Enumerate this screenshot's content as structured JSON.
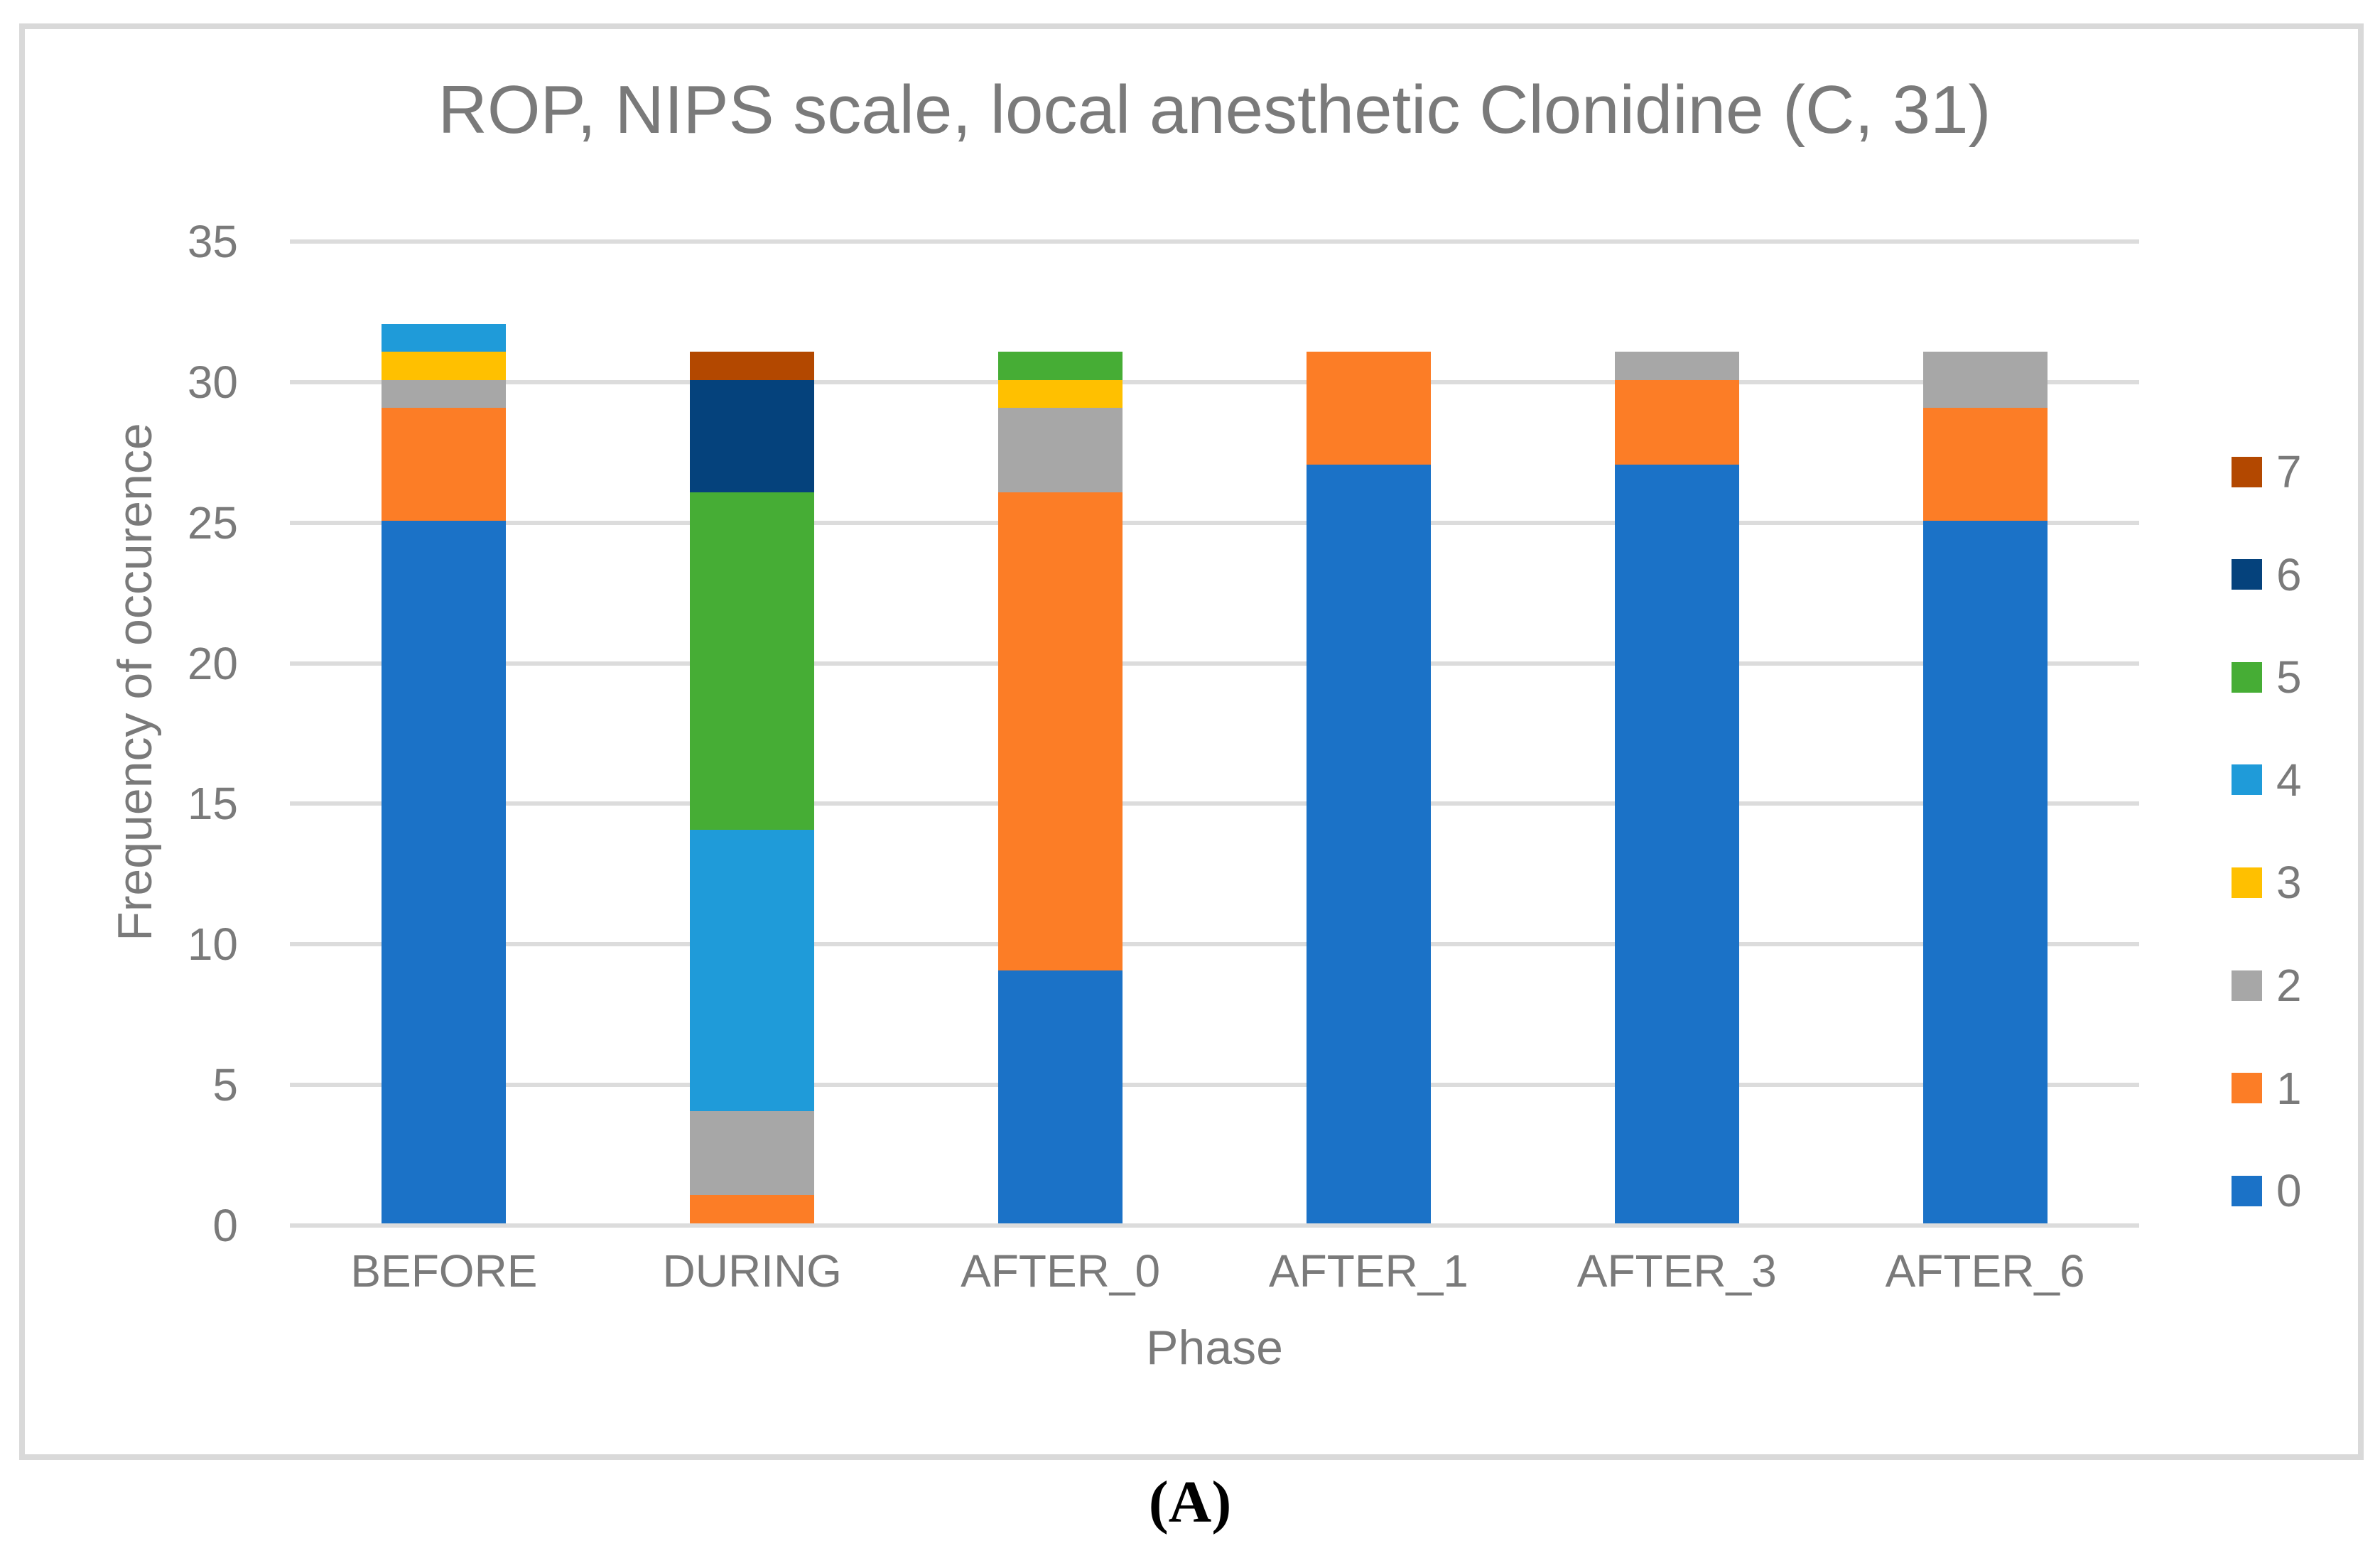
{
  "figure": {
    "caption": "(A)"
  },
  "theme": {
    "text_color": "#7A7A7A",
    "gridline_color": "#DCDCDC",
    "frame_border_color": "#D9D9D9",
    "background": "#FFFFFF"
  },
  "chart_data": {
    "type": "bar",
    "stacked": true,
    "title": "ROP, NIPS scale, local anesthetic Clonidine (C, 31)",
    "xlabel": "Phase",
    "ylabel": "Frequency of occurence",
    "categories": [
      "BEFORE",
      "DURING",
      "AFTER_0",
      "AFTER_1",
      "AFTER_3",
      "AFTER_6"
    ],
    "series": [
      {
        "name": "0",
        "color": "#1B72C7",
        "values": [
          25,
          0,
          9,
          27,
          27,
          25
        ]
      },
      {
        "name": "1",
        "color": "#FC7D26",
        "values": [
          4,
          1,
          17,
          4,
          3,
          4
        ]
      },
      {
        "name": "2",
        "color": "#A7A7A7",
        "values": [
          1,
          3,
          3,
          0,
          1,
          2
        ]
      },
      {
        "name": "3",
        "color": "#FFC000",
        "values": [
          1,
          0,
          1,
          0,
          0,
          0
        ]
      },
      {
        "name": "4",
        "color": "#1F9BD9",
        "values": [
          1,
          10,
          0,
          0,
          0,
          0
        ]
      },
      {
        "name": "5",
        "color": "#46AD35",
        "values": [
          0,
          12,
          1,
          0,
          0,
          0
        ]
      },
      {
        "name": "6",
        "color": "#05427C",
        "values": [
          0,
          4,
          0,
          0,
          0,
          0
        ]
      },
      {
        "name": "7",
        "color": "#B34800",
        "values": [
          0,
          1,
          0,
          0,
          0,
          0
        ]
      }
    ],
    "totals_per_category": [
      32,
      31,
      31,
      31,
      31,
      31
    ],
    "ylim": [
      0,
      35
    ],
    "yticks": [
      0,
      5,
      10,
      15,
      20,
      25,
      30,
      35
    ],
    "grid": true,
    "legend": {
      "position": "right",
      "order_top_to_bottom": [
        "7",
        "6",
        "5",
        "4",
        "3",
        "2",
        "1",
        "0"
      ]
    }
  }
}
